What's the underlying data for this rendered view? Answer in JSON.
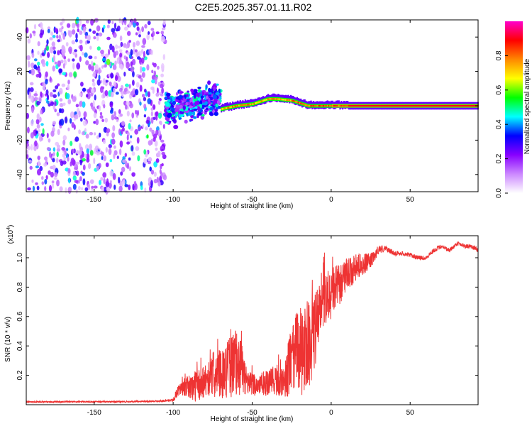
{
  "title": "C2E5.2025.357.01.11.R02",
  "colors": {
    "line": "#ee3333",
    "background": "#ffffff",
    "frame": "#000000"
  },
  "chart_data": [
    {
      "type": "heatmap",
      "xlabel": "Height of straight line (km)",
      "ylabel": "Frequency (Hz)",
      "xlim": [
        -193,
        93
      ],
      "ylim": [
        -50,
        50
      ],
      "xticks": [
        -150,
        -100,
        -50,
        0,
        50
      ],
      "yticks": [
        -40,
        -20,
        0,
        20,
        40
      ],
      "colorbar": {
        "label": "Normalized spectral amplitude",
        "range": [
          0,
          1
        ],
        "ticks": [
          0.0,
          0.2,
          0.4,
          0.6,
          0.8
        ],
        "tick_labels": [
          "0.0",
          "0.2",
          "0.4",
          "0.6",
          "0.8"
        ],
        "colormap": [
          "#ffffff",
          "#cc88ff",
          "#8800ff",
          "#0000ff",
          "#00ffff",
          "#00ff00",
          "#ffff00",
          "#ff8800",
          "#ff0000",
          "#ff00cc"
        ]
      },
      "regions": [
        {
          "name": "noise",
          "x": [
            -193,
            -105
          ],
          "f": [
            -50,
            50
          ],
          "amplitude": 0.15
        },
        {
          "name": "turbulent",
          "x": [
            -105,
            -70
          ],
          "f_center": [
            -2,
            4
          ],
          "f_spread": 8,
          "amplitude": 0.35
        },
        {
          "name": "ridge",
          "x": [
            -70,
            93
          ],
          "f_center_points": [
            [
              -70,
              -2
            ],
            [
              -60,
              0
            ],
            [
              -50,
              1
            ],
            [
              -40,
              4
            ],
            [
              -35,
              4
            ],
            [
              -25,
              3
            ],
            [
              -15,
              0
            ],
            [
              0,
              0
            ],
            [
              93,
              0
            ]
          ],
          "amplitude": 0.85
        }
      ]
    },
    {
      "type": "line",
      "xlabel": "Height of straight line (km)",
      "ylabel": "SNR (10 * v/v)",
      "multiplier_label": "(x10",
      "multiplier_exponent": "4",
      "xlim": [
        -193,
        93
      ],
      "ylim": [
        0,
        1.15
      ],
      "xticks": [
        -150,
        -100,
        -50,
        0,
        50
      ],
      "yticks": [
        0.2,
        0.4,
        0.6,
        0.8,
        1.0
      ],
      "ytick_labels": [
        "0.2",
        "0.4",
        "0.6",
        "0.8",
        "1.0"
      ],
      "series": [
        {
          "name": "SNR",
          "x": [
            -193,
            -160,
            -130,
            -110,
            -100,
            -97,
            -93,
            -88,
            -83,
            -78,
            -73,
            -68,
            -63,
            -58,
            -53,
            -48,
            -43,
            -38,
            -33,
            -30,
            -27,
            -24,
            -21,
            -18,
            -15,
            -12,
            -9,
            -6,
            -3,
            0,
            3,
            6,
            9,
            12,
            15,
            18,
            21,
            24,
            27,
            30,
            35,
            40,
            45,
            50,
            55,
            60,
            65,
            70,
            75,
            80,
            85,
            90,
            93
          ],
          "values": [
            0.02,
            0.02,
            0.02,
            0.025,
            0.03,
            0.1,
            0.12,
            0.12,
            0.14,
            0.18,
            0.2,
            0.22,
            0.27,
            0.28,
            0.15,
            0.14,
            0.14,
            0.15,
            0.17,
            0.13,
            0.25,
            0.3,
            0.4,
            0.35,
            0.4,
            0.45,
            0.55,
            0.65,
            0.7,
            0.75,
            0.8,
            0.82,
            0.88,
            0.9,
            0.92,
            0.95,
            0.96,
            0.97,
            1.0,
            1.06,
            1.06,
            1.03,
            1.03,
            1.02,
            1.0,
            1.0,
            1.05,
            1.08,
            1.05,
            1.1,
            1.08,
            1.07,
            1.05
          ],
          "noise_amplitude": [
            0.005,
            0.005,
            0.005,
            0.005,
            0.01,
            0.04,
            0.06,
            0.1,
            0.12,
            0.12,
            0.15,
            0.18,
            0.22,
            0.22,
            0.08,
            0.08,
            0.08,
            0.1,
            0.12,
            0.08,
            0.2,
            0.25,
            0.3,
            0.3,
            0.3,
            0.28,
            0.25,
            0.25,
            0.22,
            0.18,
            0.15,
            0.14,
            0.12,
            0.1,
            0.1,
            0.08,
            0.07,
            0.06,
            0.04,
            0.03,
            0.02,
            0.015,
            0.015,
            0.015,
            0.015,
            0.015,
            0.015,
            0.015,
            0.015,
            0.015,
            0.015,
            0.015,
            0.015
          ]
        }
      ]
    }
  ]
}
